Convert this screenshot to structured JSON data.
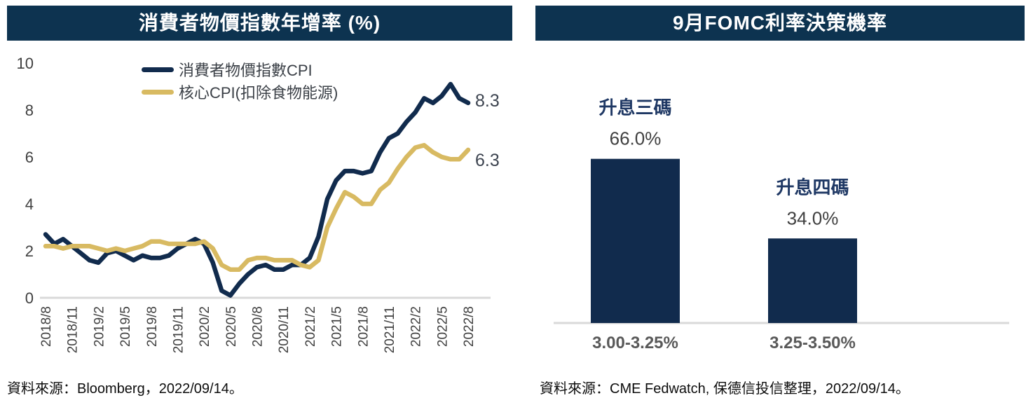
{
  "theme": {
    "header_bg": "#0d3350",
    "header_text": "#ffffff",
    "navy": "#112b4d",
    "gold": "#d8ba62",
    "axis_line": "#d9d9d9",
    "tick_text": "#404040",
    "end_label_text": "#3d4450",
    "bar_name_text": "#1f3864",
    "category_text": "#595959"
  },
  "left_panel": {
    "source": "資料來源：Bloomberg，2022/09/14。"
  },
  "right_panel": {
    "source": "資料來源：CME Fedwatch, 保德信投信整理，2022/09/14。"
  },
  "chart_data": [
    {
      "type": "line",
      "title": "消費者物價指數年增率 (%)",
      "ylim": [
        0,
        10
      ],
      "yticks": [
        0,
        2,
        4,
        6,
        8,
        10
      ],
      "grid": false,
      "legend_position": "top",
      "tick_every": 3,
      "x": [
        "2018/8",
        "2018/9",
        "2018/10",
        "2018/11",
        "2018/12",
        "2019/1",
        "2019/2",
        "2019/3",
        "2019/4",
        "2019/5",
        "2019/6",
        "2019/7",
        "2019/8",
        "2019/9",
        "2019/10",
        "2019/11",
        "2019/12",
        "2020/1",
        "2020/2",
        "2020/3",
        "2020/4",
        "2020/5",
        "2020/6",
        "2020/7",
        "2020/8",
        "2020/9",
        "2020/10",
        "2020/11",
        "2020/12",
        "2021/1",
        "2021/2",
        "2021/3",
        "2021/4",
        "2021/5",
        "2021/6",
        "2021/7",
        "2021/8",
        "2021/9",
        "2021/10",
        "2021/11",
        "2021/12",
        "2022/1",
        "2022/2",
        "2022/3",
        "2022/4",
        "2022/5",
        "2022/6",
        "2022/7",
        "2022/8"
      ],
      "series": [
        {
          "name": "消費者物價指數CPI",
          "color": "#112b4d",
          "end_label": "8.3",
          "values": [
            2.7,
            2.3,
            2.5,
            2.2,
            1.9,
            1.6,
            1.5,
            1.9,
            2.0,
            1.8,
            1.6,
            1.8,
            1.7,
            1.7,
            1.8,
            2.1,
            2.3,
            2.5,
            2.3,
            1.5,
            0.3,
            0.1,
            0.6,
            1.0,
            1.3,
            1.4,
            1.2,
            1.2,
            1.4,
            1.4,
            1.7,
            2.6,
            4.2,
            5.0,
            5.4,
            5.4,
            5.3,
            5.4,
            6.2,
            6.8,
            7.0,
            7.5,
            7.9,
            8.5,
            8.3,
            8.6,
            9.1,
            8.5,
            8.3
          ]
        },
        {
          "name": "核心CPI(扣除食物能源)",
          "color": "#d8ba62",
          "end_label": "6.3",
          "values": [
            2.2,
            2.2,
            2.1,
            2.2,
            2.2,
            2.2,
            2.1,
            2.0,
            2.1,
            2.0,
            2.1,
            2.2,
            2.4,
            2.4,
            2.3,
            2.3,
            2.3,
            2.3,
            2.4,
            2.1,
            1.4,
            1.2,
            1.2,
            1.6,
            1.7,
            1.7,
            1.6,
            1.6,
            1.6,
            1.4,
            1.3,
            1.6,
            3.0,
            3.8,
            4.5,
            4.3,
            4.0,
            4.0,
            4.6,
            4.9,
            5.5,
            6.0,
            6.4,
            6.5,
            6.2,
            6.0,
            5.9,
            5.9,
            6.3
          ]
        }
      ]
    },
    {
      "type": "bar",
      "title": "9月FOMC利率決策機率",
      "categories": [
        "3.00-3.25%",
        "3.25-3.50%"
      ],
      "bar_names": [
        "升息三碼",
        "升息四碼"
      ],
      "values": [
        66.0,
        34.0
      ],
      "value_labels": [
        "66.0%",
        "34.0%"
      ],
      "bar_color": "#112b4d",
      "ylim": [
        0,
        100
      ],
      "grid": false
    }
  ]
}
